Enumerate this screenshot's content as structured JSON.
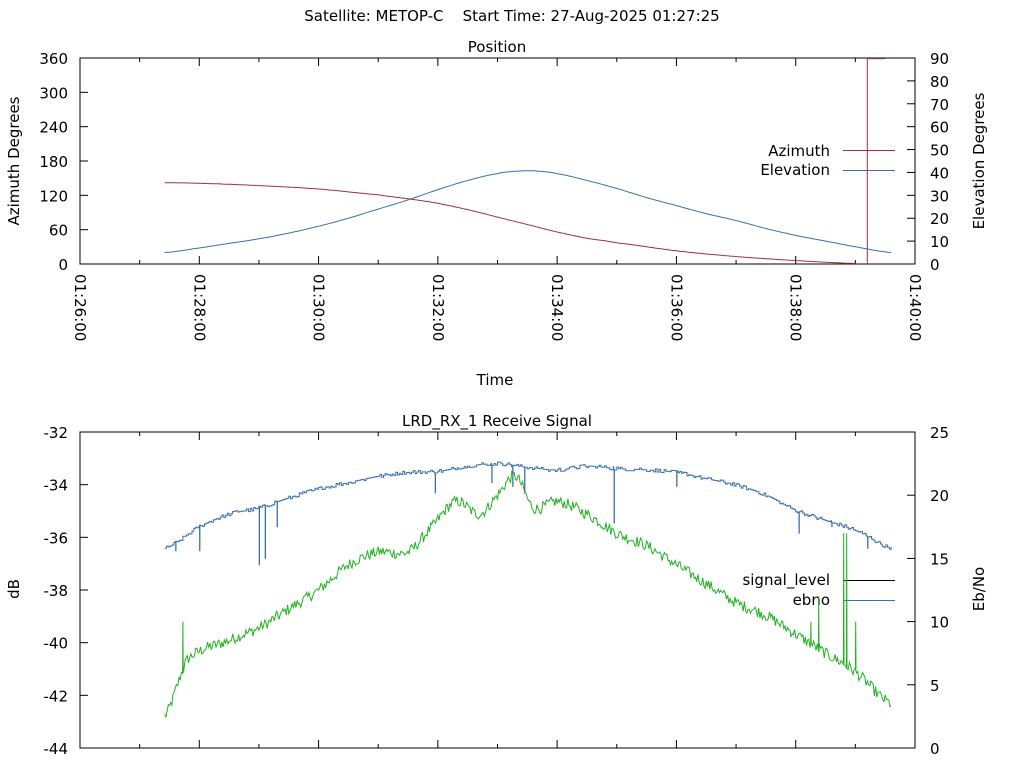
{
  "header": {
    "satellite": "Satellite: METOP-C",
    "start_time": "Start Time: 27-Aug-2025 01:27:25"
  },
  "colors": {
    "azimuth": "#a0303a",
    "elevation": "#3a70a8",
    "signal_level": "#000000",
    "ebno_green": "#22b222",
    "ebno_blue": "#3a70a8"
  },
  "chart_data": [
    {
      "type": "line",
      "title": "Position",
      "xlabel": "Time",
      "ylabel": "Azimuth Degrees",
      "y2label": "Elevation Degrees",
      "x_ticks": [
        "01:26:00",
        "01:28:00",
        "01:30:00",
        "01:32:00",
        "01:34:00",
        "01:36:00",
        "01:38:00",
        "01:40:00"
      ],
      "xlim_min": [
        86,
        100
      ],
      "ylim": [
        0,
        360
      ],
      "y_ticks": [
        0,
        60,
        120,
        180,
        240,
        300,
        360
      ],
      "y2lim": [
        0,
        90
      ],
      "y2_ticks": [
        0,
        10,
        20,
        30,
        40,
        50,
        60,
        70,
        80,
        90
      ],
      "legend": "right",
      "series": [
        {
          "name": "Azimuth",
          "axis": "y",
          "x": [
            87.42,
            88.0,
            89.0,
            90.0,
            91.0,
            91.5,
            92.0,
            92.5,
            93.0,
            93.5,
            94.0,
            94.5,
            95.0,
            96.0,
            97.0,
            98.0,
            99.0
          ],
          "y": [
            142,
            141,
            137,
            131,
            121,
            114,
            106,
            95,
            82,
            69,
            56,
            45,
            37,
            23,
            13,
            6,
            1
          ]
        },
        {
          "name": "Azimuth",
          "axis": "y",
          "x": [
            99.2,
            99.2,
            99.5
          ],
          "y": [
            0,
            359,
            359
          ]
        },
        {
          "name": "Elevation",
          "axis": "y2",
          "x": [
            87.42,
            88.0,
            88.5,
            89.0,
            89.5,
            90.0,
            90.5,
            91.0,
            91.5,
            92.0,
            92.5,
            93.0,
            93.3,
            93.6,
            94.0,
            94.5,
            95.0,
            95.5,
            96.0,
            96.5,
            97.0,
            97.5,
            98.0,
            98.5,
            99.0,
            99.6
          ],
          "y": [
            5,
            7,
            9,
            11,
            13.5,
            16.5,
            20,
            24,
            28,
            32.5,
            36.5,
            39.5,
            40.5,
            40.7,
            39.5,
            36.5,
            33,
            29,
            25.5,
            22,
            19,
            15.5,
            12.5,
            10,
            7.5,
            5
          ]
        }
      ]
    },
    {
      "type": "line",
      "title": "LRD_RX_1 Receive Signal",
      "ylabel": "dB",
      "y2label": "Eb/No",
      "ylim": [
        -44,
        -32
      ],
      "y_ticks": [
        -44,
        -42,
        -40,
        -38,
        -36,
        -34,
        -32
      ],
      "y2lim": [
        0,
        25
      ],
      "y2_ticks": [
        0,
        5,
        10,
        15,
        20,
        25
      ],
      "legend": "right",
      "series": [
        {
          "name": "signal_level",
          "axis": "y",
          "x": [],
          "y": []
        },
        {
          "name": "ebno",
          "axis": "y2",
          "x": [
            87.42,
            87.8,
            88.5,
            89.0,
            89.5,
            90.0,
            90.5,
            91.0,
            91.5,
            91.9,
            92.3,
            92.7,
            93.0,
            93.3,
            93.6,
            94.0,
            94.5,
            95.0,
            95.5,
            96.0,
            96.5,
            97.0,
            97.5,
            98.0,
            98.5,
            99.0,
            99.6
          ],
          "y": [
            2.5,
            7,
            8.5,
            9.5,
            11,
            12.5,
            14.5,
            15.5,
            15.5,
            17.5,
            19.5,
            18.5,
            20,
            21.5,
            19,
            19.5,
            18.5,
            17,
            16,
            14.5,
            13,
            11.5,
            10.5,
            9,
            7.5,
            6,
            3.5
          ]
        },
        {
          "name": "ebno",
          "axis": "y2",
          "x": [
            87.42,
            88.0,
            88.5,
            89.0,
            89.5,
            90.0,
            90.5,
            91.0,
            91.5,
            92.0,
            92.5,
            93.0,
            93.5,
            94.0,
            94.5,
            95.0,
            95.5,
            96.0,
            96.5,
            97.0,
            97.5,
            98.0,
            98.5,
            99.0,
            99.6
          ],
          "y": [
            15.8,
            17.5,
            18.5,
            19.0,
            19.8,
            20.5,
            21.0,
            21.5,
            21.8,
            21.9,
            22.3,
            22.5,
            22.2,
            22.0,
            22.3,
            22.1,
            22.0,
            21.8,
            21.3,
            20.8,
            20.0,
            18.8,
            18.0,
            17.2,
            15.8
          ]
        }
      ]
    }
  ]
}
